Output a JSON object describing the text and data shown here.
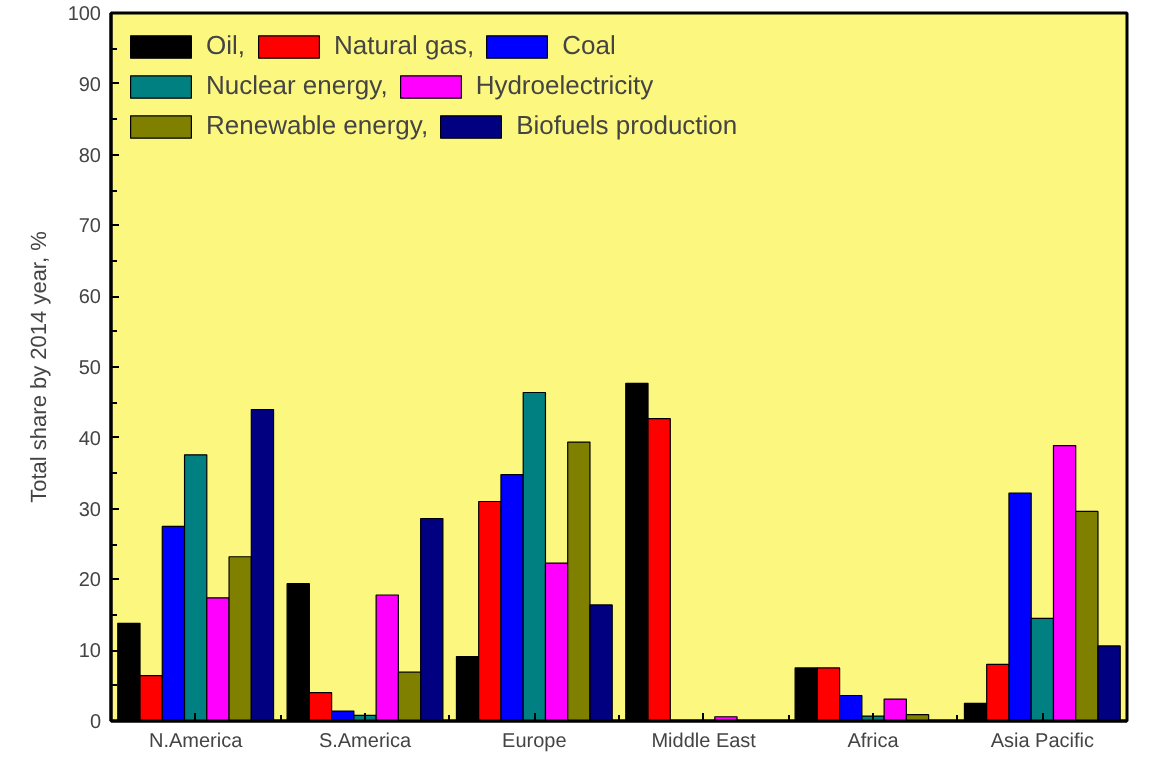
{
  "chart_data": {
    "type": "bar",
    "ylabel": "Total share by 2014 year, %",
    "categories": [
      "N.America",
      "S.America",
      "Europe",
      "Middle East",
      "Africa",
      "Asia Pacific"
    ],
    "series": [
      {
        "name": "Oil,",
        "color": "#000000",
        "values": [
          13.8,
          19.4,
          9.1,
          47.7,
          7.5,
          2.5
        ]
      },
      {
        "name": "Natural gas,",
        "color": "#ff0000",
        "values": [
          6.4,
          4.0,
          31.0,
          42.7,
          7.5,
          8.0
        ]
      },
      {
        "name": "Coal",
        "color": "#0000ff",
        "values": [
          27.5,
          1.4,
          34.8,
          null,
          3.6,
          32.2
        ]
      },
      {
        "name": "Nuclear energy,",
        "color": "#008080",
        "values": [
          37.6,
          0.8,
          46.4,
          null,
          0.7,
          14.5
        ]
      },
      {
        "name": "Hydroelectricity",
        "color": "#ff00ff",
        "values": [
          17.4,
          17.8,
          22.3,
          0.6,
          3.1,
          38.9
        ]
      },
      {
        "name": "Renewable energy,",
        "color": "#808000",
        "values": [
          23.2,
          6.9,
          39.4,
          null,
          0.9,
          29.6
        ]
      },
      {
        "name": "Biofuels production",
        "color": "#000080",
        "values": [
          44.0,
          28.6,
          16.4,
          null,
          null,
          10.6
        ]
      }
    ],
    "ylim": [
      0,
      100
    ],
    "yticks": [
      0,
      10,
      20,
      30,
      40,
      50,
      60,
      70,
      80,
      90,
      100
    ],
    "grid": false,
    "legend": "top left"
  }
}
